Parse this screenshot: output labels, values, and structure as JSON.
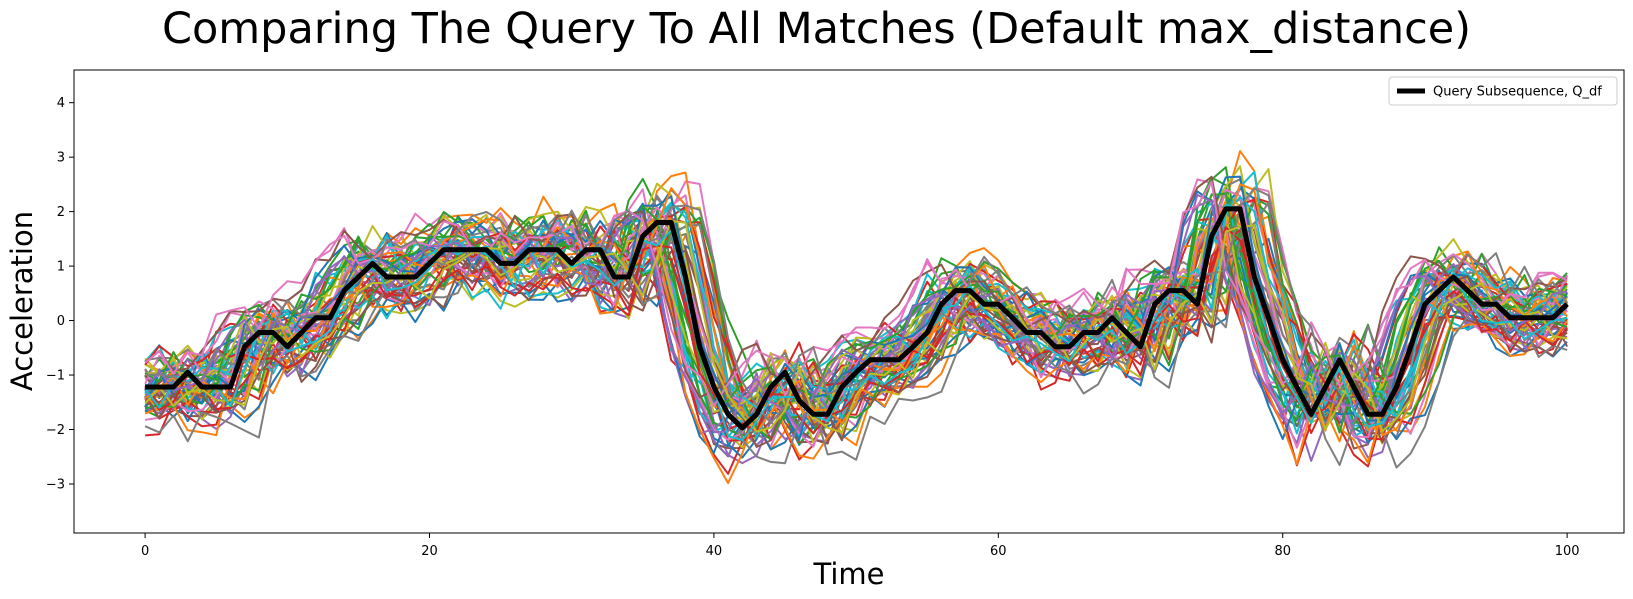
{
  "chart_data": {
    "type": "line",
    "title": "Comparing The Query To All Matches (Default max_distance)",
    "xlabel": "Time",
    "ylabel": "Acceleration",
    "xlim": [
      -5,
      104
    ],
    "ylim": [
      -3.9,
      4.6
    ],
    "xticks": [
      0,
      20,
      40,
      60,
      80,
      100
    ],
    "yticks": [
      -3,
      -2,
      -1,
      0,
      1,
      2,
      3,
      4
    ],
    "grid": false,
    "legend_position": "top-right",
    "match_count_estimate": 60,
    "match_palette": [
      "#1f77b4",
      "#ff7f0e",
      "#2ca02c",
      "#d62728",
      "#9467bd",
      "#8c564b",
      "#e377c2",
      "#7f7f7f",
      "#bcbd22",
      "#17becf"
    ],
    "series": [
      {
        "name": "Query Subsequence, Q_df",
        "color": "#000000",
        "values": [
          -1.22,
          -1.22,
          -1.22,
          -0.95,
          -1.22,
          -1.22,
          -1.22,
          -0.48,
          -0.22,
          -0.22,
          -0.48,
          -0.22,
          0.05,
          0.05,
          0.55,
          0.8,
          1.05,
          0.8,
          0.8,
          0.8,
          1.05,
          1.3,
          1.3,
          1.3,
          1.3,
          1.05,
          1.05,
          1.3,
          1.3,
          1.3,
          1.05,
          1.3,
          1.3,
          0.8,
          0.8,
          1.55,
          1.8,
          1.8,
          0.8,
          -0.48,
          -1.22,
          -1.72,
          -1.97,
          -1.72,
          -1.22,
          -0.95,
          -1.47,
          -1.72,
          -1.72,
          -1.22,
          -0.95,
          -0.72,
          -0.72,
          -0.72,
          -0.48,
          -0.22,
          0.3,
          0.55,
          0.55,
          0.3,
          0.3,
          0.05,
          -0.22,
          -0.22,
          -0.48,
          -0.48,
          -0.22,
          -0.22,
          0.05,
          -0.22,
          -0.48,
          0.3,
          0.55,
          0.55,
          0.3,
          1.55,
          2.05,
          2.05,
          0.8,
          0.05,
          -0.72,
          -1.22,
          -1.72,
          -1.22,
          -0.72,
          -1.22,
          -1.72,
          -1.72,
          -1.22,
          -0.48,
          0.3,
          0.55,
          0.8,
          0.55,
          0.3,
          0.3,
          0.05,
          0.05,
          0.05,
          0.05,
          0.3
        ]
      }
    ]
  }
}
